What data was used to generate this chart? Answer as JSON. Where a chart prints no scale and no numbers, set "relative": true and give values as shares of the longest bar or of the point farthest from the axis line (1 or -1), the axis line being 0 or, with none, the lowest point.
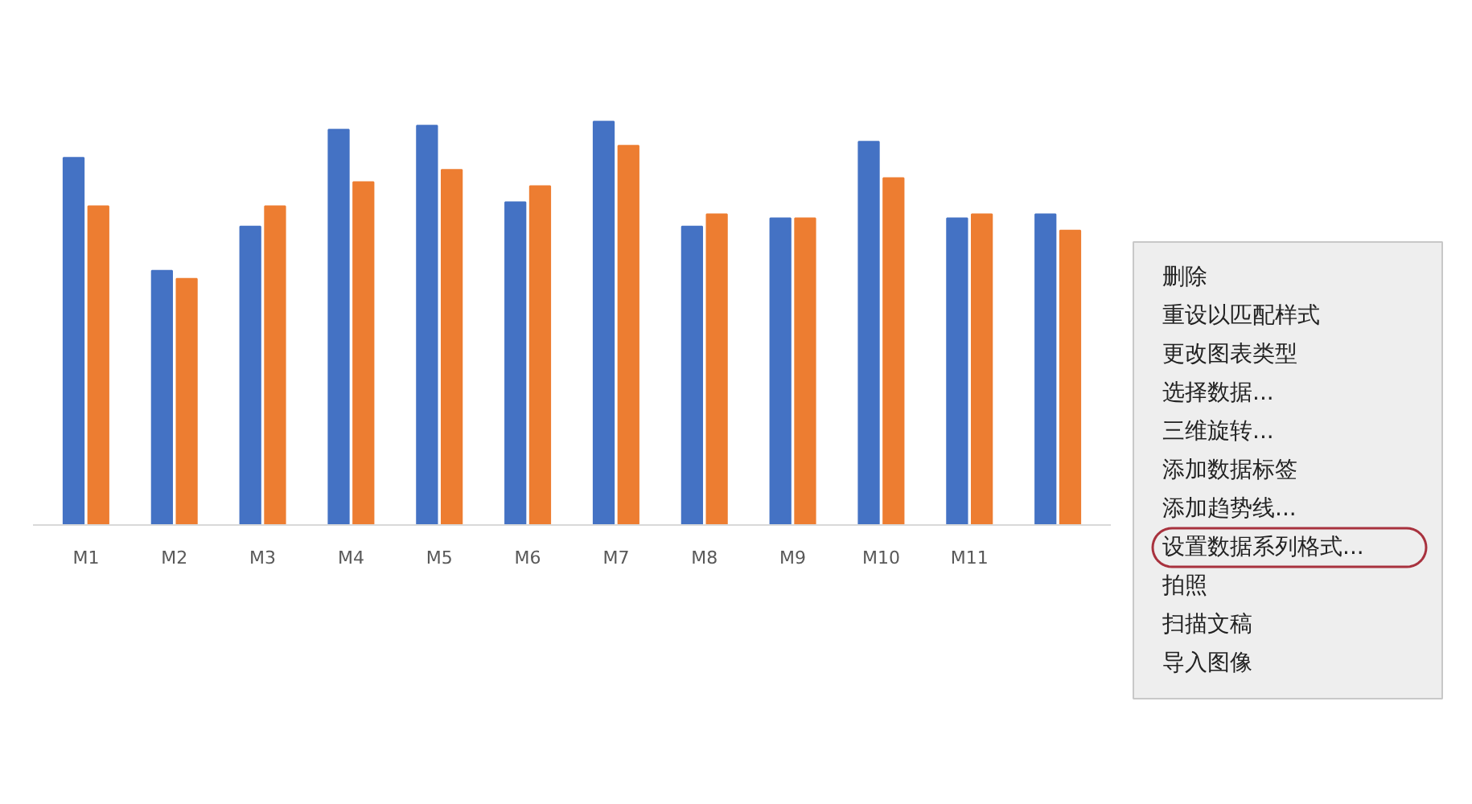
{
  "chart_data": {
    "type": "bar",
    "relative": true,
    "categories": [
      "M1",
      "M2",
      "M3",
      "M4",
      "M5",
      "M6",
      "M7",
      "M8",
      "M9",
      "M10",
      "M11",
      null
    ],
    "series": [
      {
        "color": "#4472c4",
        "values": [
          0.91,
          0.63,
          0.74,
          0.98,
          0.99,
          0.8,
          1,
          0.74,
          0.76,
          0.95,
          0.76,
          0.77
        ]
      },
      {
        "color": "#ed7d31",
        "values": [
          0.79,
          0.61,
          0.79,
          0.85,
          0.88,
          0.84,
          0.94,
          0.77,
          0.76,
          0.86,
          0.77,
          0.73
        ]
      }
    ],
    "annotations": [
      "删除",
      "重设以匹配样式",
      "更改图表类型",
      "选择数据...",
      "三维旋转...",
      "添加数据标签",
      "添加趋势线...",
      "设置数据系列格式...",
      "拍照",
      "扫描文稿",
      "导入图像"
    ]
  }
}
